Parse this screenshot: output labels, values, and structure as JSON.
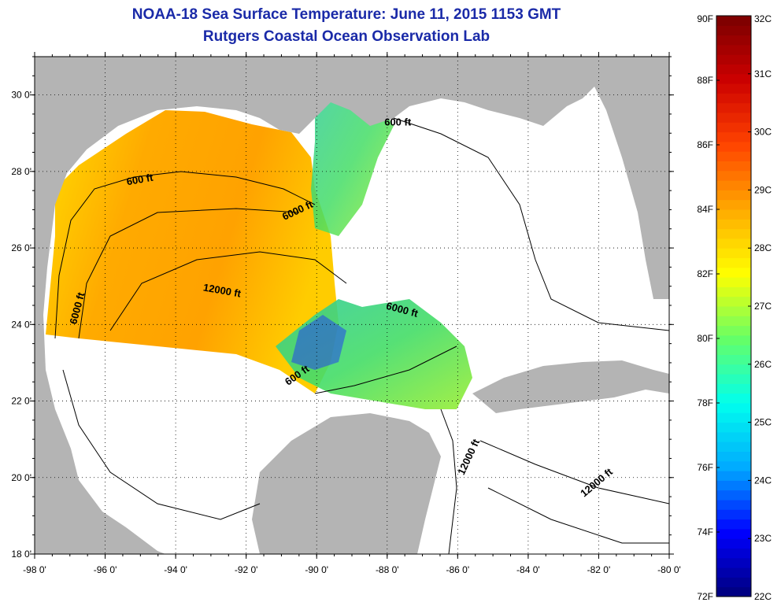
{
  "title": "NOAA-18 Sea Surface Temperature:  June 11, 2015 1153 GMT",
  "subtitle": "Rutgers Coastal Ocean Observation Lab",
  "map": {
    "lon_range": [
      -98,
      -80
    ],
    "lat_range": [
      18,
      31
    ],
    "lon_ticks": [
      {
        "v": -98,
        "t": "-98 0'"
      },
      {
        "v": -96,
        "t": "-96 0'"
      },
      {
        "v": -94,
        "t": "-94 0'"
      },
      {
        "v": -92,
        "t": "-92 0'"
      },
      {
        "v": -90,
        "t": "-90 0'"
      },
      {
        "v": -88,
        "t": "-88 0'"
      },
      {
        "v": -86,
        "t": "-86 0'"
      },
      {
        "v": -84,
        "t": "-84 0'"
      },
      {
        "v": -82,
        "t": "-82 0'"
      },
      {
        "v": -80,
        "t": "-80 0'"
      }
    ],
    "lat_ticks": [
      {
        "v": 18,
        "t": "18 0'"
      },
      {
        "v": 20,
        "t": "20 0'"
      },
      {
        "v": 22,
        "t": "22 0'"
      },
      {
        "v": 24,
        "t": "24 0'"
      },
      {
        "v": 26,
        "t": "26 0'"
      },
      {
        "v": 28,
        "t": "28 0'"
      },
      {
        "v": 30,
        "t": "30 0'"
      }
    ],
    "grid": true,
    "land_color": "#b4b4b4",
    "contour_labels": [
      {
        "t": "600 ft",
        "lon": -95.0,
        "lat": 27.7,
        "rot": -10
      },
      {
        "t": "6000 ft",
        "lon": -90.5,
        "lat": 26.9,
        "rot": -25
      },
      {
        "t": "600 ft",
        "lon": -87.7,
        "lat": 29.2,
        "rot": 0
      },
      {
        "t": "12000 ft",
        "lon": -92.7,
        "lat": 24.8,
        "rot": 10
      },
      {
        "t": "6000 ft",
        "lon": -96.7,
        "lat": 24.4,
        "rot": -75
      },
      {
        "t": "6000 ft",
        "lon": -87.6,
        "lat": 24.3,
        "rot": 15
      },
      {
        "t": "600 ft",
        "lon": -90.5,
        "lat": 22.6,
        "rot": -35
      },
      {
        "t": "12000 ft",
        "lon": -85.6,
        "lat": 20.5,
        "rot": -65
      },
      {
        "t": "12000 ft",
        "lon": -82.0,
        "lat": 19.8,
        "rot": -40
      }
    ]
  },
  "colorbar": {
    "colors": [
      "#00007a",
      "#0000ff",
      "#00aaff",
      "#00ffee",
      "#66ff66",
      "#ffff00",
      "#ffaa00",
      "#ff4400",
      "#cc0000",
      "#7a0000"
    ],
    "f_labels": [
      {
        "v": 72,
        "t": "72F"
      },
      {
        "v": 74,
        "t": "74F"
      },
      {
        "v": 76,
        "t": "76F"
      },
      {
        "v": 78,
        "t": "78F"
      },
      {
        "v": 80,
        "t": "80F"
      },
      {
        "v": 82,
        "t": "82F"
      },
      {
        "v": 84,
        "t": "84F"
      },
      {
        "v": 86,
        "t": "86F"
      },
      {
        "v": 88,
        "t": "88F"
      },
      {
        "v": 90,
        "t": "90F"
      }
    ],
    "c_labels": [
      {
        "v": 22,
        "t": "22C"
      },
      {
        "v": 23,
        "t": "23C"
      },
      {
        "v": 24,
        "t": "24C"
      },
      {
        "v": 25,
        "t": "25C"
      },
      {
        "v": 26,
        "t": "26C"
      },
      {
        "v": 27,
        "t": "27C"
      },
      {
        "v": 28,
        "t": "28C"
      },
      {
        "v": 29,
        "t": "29C"
      },
      {
        "v": 30,
        "t": "30C"
      },
      {
        "v": 31,
        "t": "31C"
      },
      {
        "v": 32,
        "t": "32C"
      }
    ],
    "f_range": [
      72,
      90
    ],
    "c_range": [
      22,
      32
    ]
  }
}
